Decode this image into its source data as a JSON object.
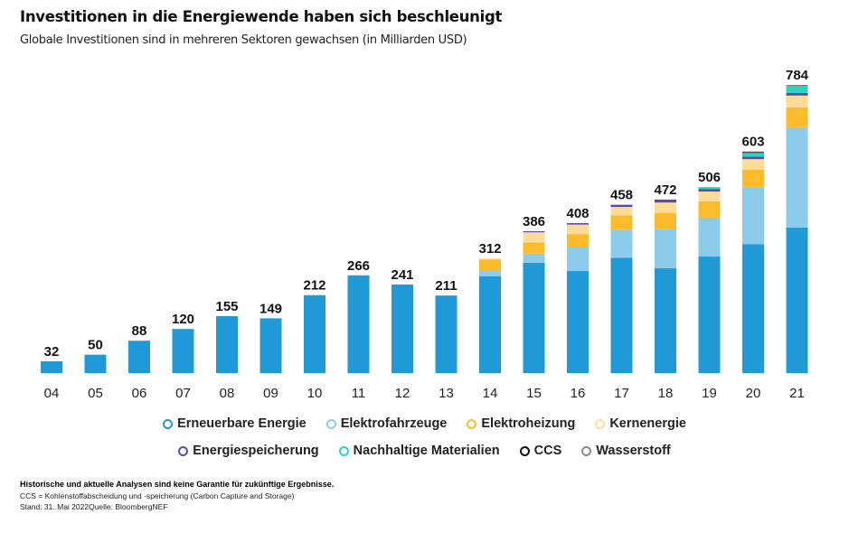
{
  "header": {
    "title": "Investitionen in die Energiewende haben sich beschleunigt",
    "subtitle": "Globale Investitionen sind in mehreren Sektoren gewachsen (in Milliarden USD)"
  },
  "chart_data": {
    "type": "bar",
    "stacked": true,
    "title": "Investitionen in die Energiewende haben sich beschleunigt",
    "subtitle": "Globale Investitionen sind in mehreren Sektoren gewachsen (in Milliarden USD)",
    "xlabel": "",
    "ylabel": "",
    "ylim": [
      0,
      784
    ],
    "grid": false,
    "legend_position": "bottom",
    "categories": [
      "04",
      "05",
      "06",
      "07",
      "08",
      "09",
      "10",
      "11",
      "12",
      "13",
      "14",
      "15",
      "16",
      "17",
      "18",
      "19",
      "20",
      "21"
    ],
    "totals": [
      32,
      50,
      88,
      120,
      155,
      149,
      212,
      266,
      241,
      211,
      312,
      386,
      408,
      458,
      472,
      506,
      603,
      784
    ],
    "series": [
      {
        "name": "Erneuerbare Energie",
        "color": "#1f9ad6",
        "values": [
          32,
          50,
          88,
          120,
          155,
          149,
          212,
          266,
          241,
          211,
          263,
          300,
          278,
          314,
          285,
          317,
          351,
          396
        ]
      },
      {
        "name": "Elektrofahrzeuge",
        "color": "#8ccbea",
        "values": [
          0,
          0,
          0,
          0,
          0,
          0,
          0,
          0,
          0,
          0,
          17,
          25,
          66,
          76,
          108,
          106,
          155,
          273
        ]
      },
      {
        "name": "Elektroheizung",
        "color": "#fbbb2a",
        "values": [
          0,
          0,
          0,
          0,
          0,
          0,
          0,
          0,
          0,
          0,
          29,
          30,
          34,
          39,
          42,
          44,
          47,
          54
        ]
      },
      {
        "name": "Kernenergie",
        "color": "#fedc96",
        "values": [
          0,
          0,
          0,
          0,
          0,
          0,
          0,
          0,
          0,
          0,
          3,
          28,
          26,
          23,
          29,
          27,
          29,
          32
        ]
      },
      {
        "name": "Energiespeicherung",
        "color": "#5e4aa8",
        "values": [
          0,
          0,
          0,
          0,
          0,
          0,
          0,
          0,
          0,
          0,
          0,
          3,
          4,
          6,
          8,
          7,
          7,
          7
        ]
      },
      {
        "name": "Nachhaltige Materialien",
        "color": "#2ed3bd",
        "values": [
          0,
          0,
          0,
          0,
          0,
          0,
          0,
          0,
          0,
          0,
          0,
          0,
          0,
          0,
          0,
          5,
          10,
          20
        ]
      },
      {
        "name": "CCS",
        "color": "#111111",
        "values": [
          0,
          0,
          0,
          0,
          0,
          0,
          0,
          0,
          0,
          0,
          0,
          0,
          0,
          0,
          0,
          0,
          2,
          1
        ]
      },
      {
        "name": "Wasserstoff",
        "color": "#8a8a8a",
        "values": [
          0,
          0,
          0,
          0,
          0,
          0,
          0,
          0,
          0,
          0,
          0,
          0,
          0,
          0,
          0,
          0,
          2,
          1
        ]
      }
    ]
  },
  "legend": {
    "row1": [
      {
        "label": "Erneuerbare Energie",
        "color": "#1f9ad6"
      },
      {
        "label": "Elektrofahrzeuge",
        "color": "#8ccbea"
      },
      {
        "label": "Elektroheizung",
        "color": "#fbbb2a"
      },
      {
        "label": "Kernenergie",
        "color": "#fedc96"
      }
    ],
    "row2": [
      {
        "label": "Energiespeicherung",
        "color": "#5e4aa8"
      },
      {
        "label": "Nachhaltige Materialien",
        "color": "#2ed3bd"
      },
      {
        "label": "CCS",
        "color": "#111111"
      },
      {
        "label": "Wasserstoff",
        "color": "#8a8a8a"
      }
    ]
  },
  "notes": {
    "disclaimer": "Historische und aktuelle Analysen sind keine Garantie für zukünftige Ergebnisse.",
    "ccs_definition": "CCS = Kohlenstoffabscheidung und -speicherung (Carbon Capture and Storage)",
    "source": "Stand: 31. Mai 2022Quelle: BloombergNEF"
  }
}
